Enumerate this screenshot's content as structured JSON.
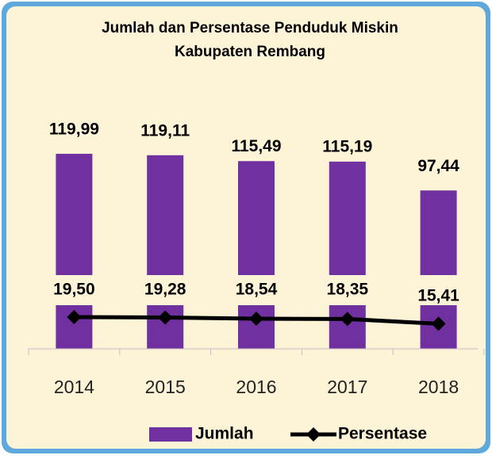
{
  "chart_data": {
    "type": "bar-line",
    "title": [
      "Jumlah dan Persentase Penduduk Miskin",
      "Kabupaten Rembang"
    ],
    "categories": [
      "2014",
      "2015",
      "2016",
      "2017",
      "2018"
    ],
    "ylim": [
      0,
      140
    ],
    "y2lim": [
      0,
      140
    ],
    "legend": "bottom",
    "series": [
      {
        "name": "Jumlah",
        "type": "bar",
        "color": "#7030a0",
        "values": [
          119.99,
          119.11,
          115.49,
          115.19,
          97.44
        ],
        "value_labels": [
          "119,99",
          "119,11",
          "115,49",
          "115,19",
          "97,44"
        ]
      },
      {
        "name": "Persentase",
        "type": "line",
        "axis": "y2",
        "color": "#000000",
        "values": [
          19.5,
          19.28,
          18.54,
          18.35,
          15.41
        ],
        "value_labels": [
          "19,50",
          "19,28",
          "18,54",
          "18,35",
          "15,41"
        ]
      }
    ]
  }
}
